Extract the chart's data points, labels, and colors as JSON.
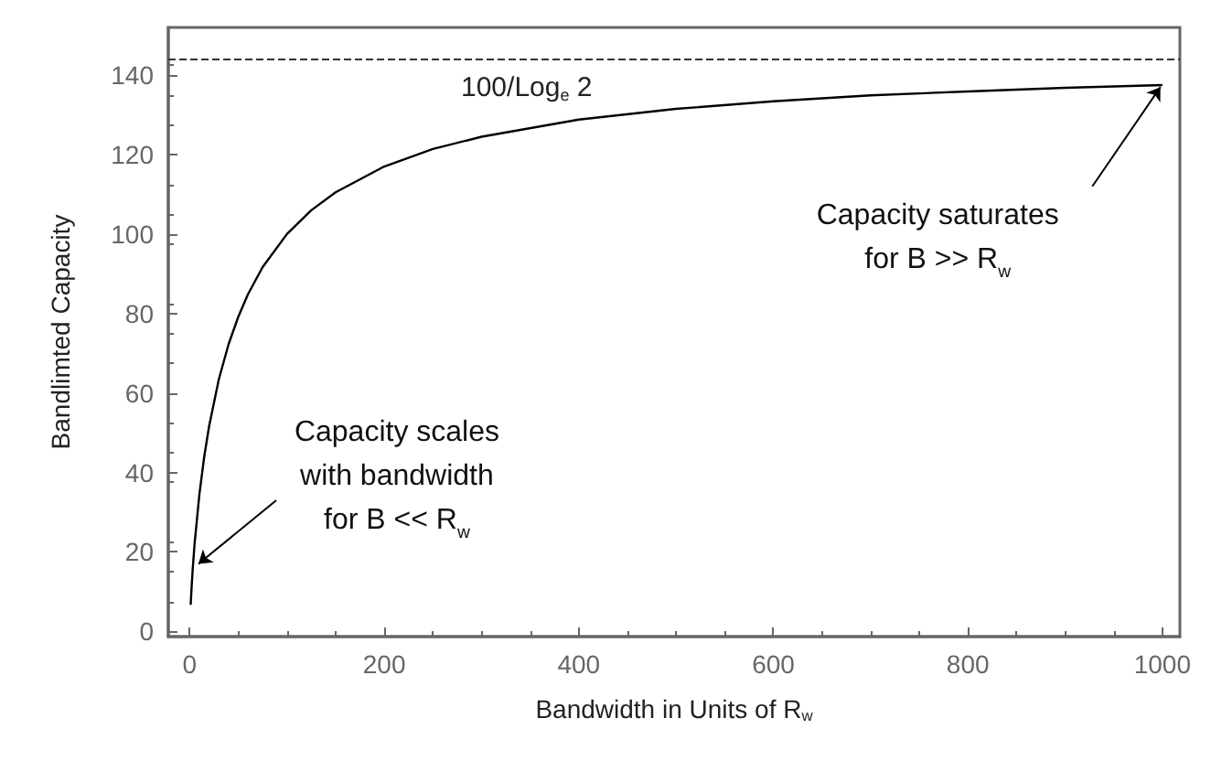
{
  "chart_data": {
    "type": "line",
    "xlabel": "Bandwidth in Units of R$_{w}$",
    "ylabel": "Bandlimted Capacity",
    "x": [
      1,
      2,
      3,
      5,
      10,
      15,
      20,
      30,
      40,
      50,
      60,
      75,
      100,
      125,
      150,
      200,
      250,
      300,
      400,
      500,
      600,
      700,
      800,
      900,
      1000
    ],
    "series": [
      {
        "color": "#000000",
        "values": [
          6.7,
          11.3,
          15.3,
          22,
          34.6,
          44.1,
          51.7,
          63.5,
          72.3,
          79.2,
          84.9,
          91.7,
          100,
          106,
          110.5,
          117,
          121.4,
          124.5,
          128.8,
          131.5,
          133.4,
          134.9,
          135.9,
          136.8,
          137.5
        ]
      }
    ],
    "xlim": [
      -22,
      1018
    ],
    "ylim": [
      -1.3,
      152
    ],
    "xticks": [
      0,
      200,
      400,
      600,
      800,
      1000
    ],
    "yticks": [
      0,
      20,
      40,
      60,
      80,
      100,
      120,
      140
    ],
    "ref_lines": [
      {
        "axis": "y",
        "value": 144.27,
        "label": "100/Log$_{e}$ 2",
        "color": "#333333",
        "line_style": "dashed"
      }
    ],
    "annotations": [
      {
        "text": "Capacity scales\nwith bandwidth\nfor B << R$_{w}$",
        "x": 9,
        "y": 17
      },
      {
        "text": "Capacity saturates\nfor B >> R$_{w}$",
        "x": 1000,
        "y": 137.5
      }
    ],
    "grid": false,
    "marker": "none",
    "line_style": "solid"
  }
}
